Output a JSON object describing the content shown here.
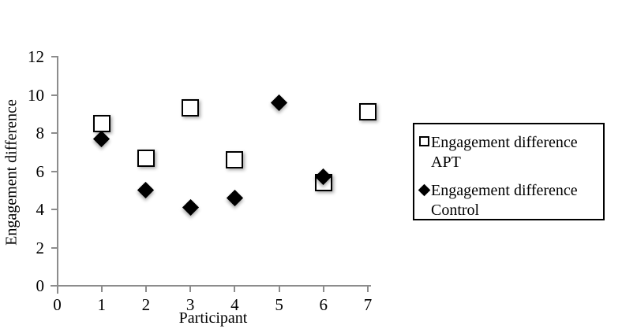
{
  "chart_data": {
    "type": "scatter",
    "title": "",
    "xlabel": "Participant",
    "ylabel": "Engagement difference",
    "xlim": [
      0,
      7
    ],
    "ylim": [
      0,
      12
    ],
    "xticks": [
      0,
      1,
      2,
      3,
      4,
      5,
      6,
      7
    ],
    "yticks": [
      0,
      2,
      4,
      6,
      8,
      10,
      12
    ],
    "grid": false,
    "legend_position": "right",
    "axis_color": "#8c8c8c",
    "marker_color": "#000000",
    "series": [
      {
        "name": "Engagement difference APT",
        "marker": "open-square",
        "color": "#000000",
        "fill": "#ffffff",
        "points": [
          {
            "x": 1,
            "y": 8.5
          },
          {
            "x": 2,
            "y": 6.7
          },
          {
            "x": 3,
            "y": 9.3
          },
          {
            "x": 4,
            "y": 6.6
          },
          {
            "x": 6,
            "y": 5.4
          },
          {
            "x": 7,
            "y": 9.1
          }
        ]
      },
      {
        "name": "Engagement difference Control",
        "marker": "filled-diamond",
        "color": "#000000",
        "fill": "#000000",
        "points": [
          {
            "x": 1,
            "y": 7.7
          },
          {
            "x": 2,
            "y": 5.0
          },
          {
            "x": 3,
            "y": 4.1
          },
          {
            "x": 4,
            "y": 4.6
          },
          {
            "x": 5,
            "y": 9.6
          },
          {
            "x": 6,
            "y": 5.7
          }
        ]
      }
    ]
  }
}
